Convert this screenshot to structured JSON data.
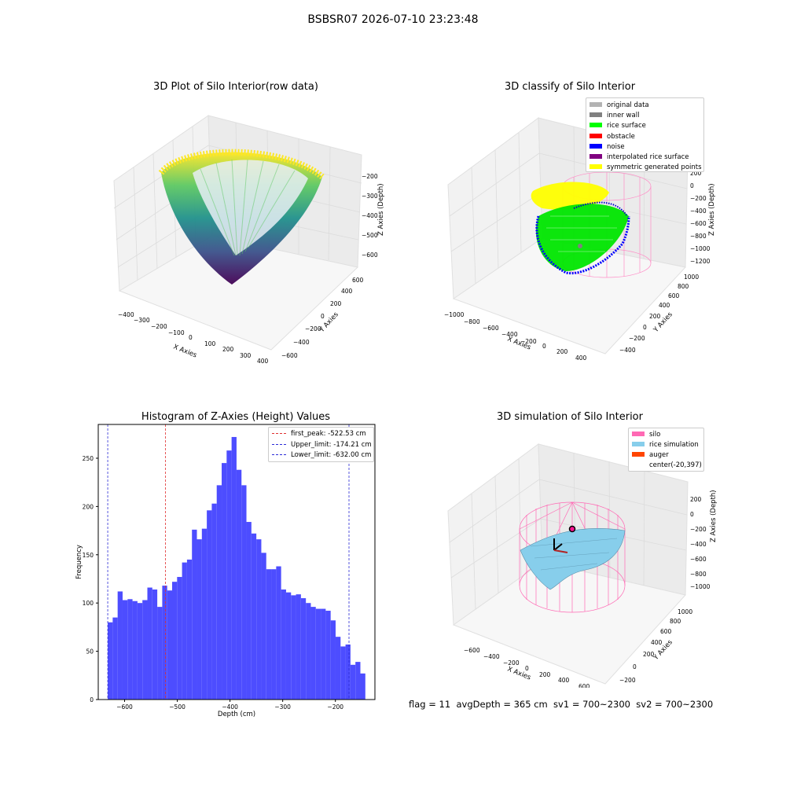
{
  "page_title": "BSBSR07 2026-07-10 23:23:48",
  "status_text": "flag = 11  avgDepth = 365 cm  sv1 = 700~2300  sv2 = 700~2300",
  "colors": {
    "hist_bar": "#4d4dff",
    "first_peak": "#e03030",
    "limit": "#2b2bd6",
    "silo": "#ff69b4",
    "rice": "#87ceeb",
    "auger": "#ff4500",
    "original": "#b3b3b3",
    "inner_wall": "#808080",
    "rice_surface": "#00ff00",
    "obstacle": "#ff0000",
    "noise": "#0000ff",
    "interpolated": "#800080",
    "symmetric": "#ffff00"
  },
  "chart_data": [
    {
      "type": "scatter",
      "title": "3D Plot of Silo Interior(row data)",
      "xlabel": "X Axies",
      "ylabel": "Y Axies",
      "zlabel": "Z Axies (Depth)",
      "x_ticks": [
        "−400",
        "−300",
        "−200",
        "−100",
        "0",
        "100",
        "200",
        "300",
        "400"
      ],
      "y_ticks": [
        "−600",
        "−400",
        "−200",
        "0",
        "200",
        "400",
        "600"
      ],
      "z_ticks": [
        "−200",
        "−300",
        "−400",
        "−500",
        "−600"
      ],
      "colormap": "viridis"
    },
    {
      "type": "scatter",
      "title": "3D classify of Silo Interior",
      "xlabel": "X Axies",
      "ylabel": "Y Axies",
      "zlabel": "Z Axies (Depth)",
      "x_ticks": [
        "−1000",
        "−800",
        "−600",
        "−400",
        "−200",
        "0",
        "200",
        "400"
      ],
      "y_ticks": [
        "−400",
        "−200",
        "0",
        "200",
        "400",
        "600",
        "800",
        "1000"
      ],
      "z_ticks": [
        "400",
        "200",
        "0",
        "−200",
        "−400",
        "−600",
        "−800",
        "−1000",
        "−1200"
      ],
      "legend": [
        "original data",
        "inner wall",
        "rice surface",
        "obstacle",
        "noise",
        "interpolated rice surface",
        "symmetric generated points"
      ],
      "legend_position": "top-right"
    },
    {
      "type": "bar",
      "title": "Histogram of Z-Axies (Height) Values",
      "xlabel": "Depth (cm)",
      "ylabel": "Frequency",
      "xlim": [
        -650,
        -125
      ],
      "ylim": [
        0,
        285
      ],
      "x_ticks": [
        -600,
        -500,
        -400,
        -300,
        -200
      ],
      "x_tick_labels": [
        "−600",
        "−500",
        "−400",
        "−300",
        "−200"
      ],
      "y_ticks": [
        0,
        50,
        100,
        150,
        200,
        250
      ],
      "bin_start": -632,
      "bin_width": 9.4,
      "values": [
        80,
        85,
        112,
        103,
        104,
        102,
        100,
        103,
        116,
        114,
        96,
        118,
        113,
        122,
        127,
        142,
        145,
        176,
        166,
        177,
        196,
        203,
        222,
        245,
        258,
        272,
        238,
        222,
        184,
        172,
        166,
        152,
        135,
        135,
        138,
        114,
        111,
        108,
        109,
        105,
        100,
        96,
        94,
        94,
        92,
        82,
        65,
        55,
        57,
        36,
        39,
        27
      ],
      "vlines": [
        {
          "label": "first_peak: -522.53 cm",
          "x": -522.53,
          "color": "#e03030"
        },
        {
          "label": "Upper_limit: -174.21 cm",
          "x": -174.21,
          "color": "#2b2bd6"
        },
        {
          "label": "Lower_limit: -632.00 cm",
          "x": -632.0,
          "color": "#2b2bd6"
        }
      ],
      "legend_position": "top-right"
    },
    {
      "type": "scatter",
      "title": "3D simulation of Silo Interior",
      "xlabel": "X Axies",
      "ylabel": "Y Axies",
      "zlabel": "Z Axies (Depth)",
      "x_ticks": [
        "−600",
        "−400",
        "−200",
        "0",
        "200",
        "400",
        "600"
      ],
      "y_ticks": [
        "−200",
        "0",
        "200",
        "400",
        "600",
        "800",
        "1000"
      ],
      "z_ticks": [
        "200",
        "0",
        "−200",
        "−400",
        "−600",
        "−800",
        "−1000"
      ],
      "legend": [
        "silo",
        "rice simulation",
        "auger",
        "center(-20,397)"
      ],
      "legend_position": "top-right"
    }
  ]
}
